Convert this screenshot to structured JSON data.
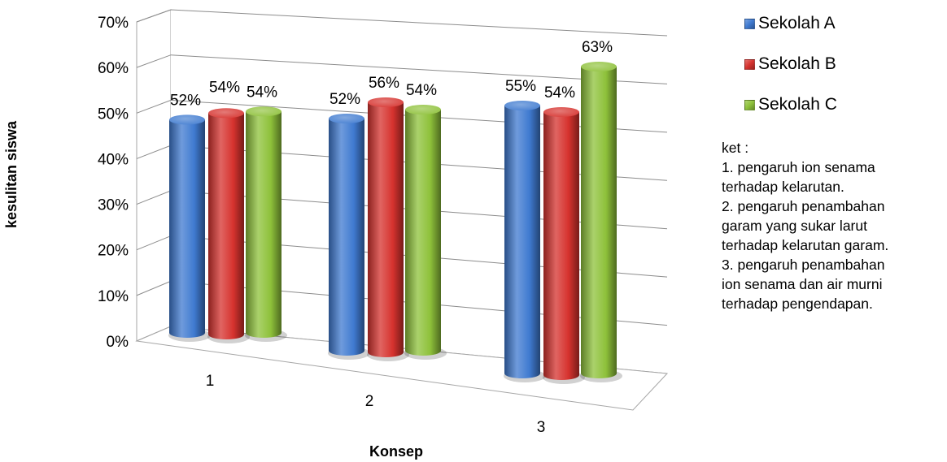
{
  "chart_data": {
    "type": "bar",
    "style": "3d-cylinder",
    "categories": [
      "1",
      "2",
      "3"
    ],
    "series": [
      {
        "name": "Sekolah A",
        "color": "#3f7ad0",
        "values": [
          52,
          52,
          55
        ],
        "labels": [
          "52%",
          "52%",
          "55%"
        ]
      },
      {
        "name": "Sekolah B",
        "color": "#d6322e",
        "values": [
          54,
          56,
          54
        ],
        "labels": [
          "54%",
          "56%",
          "54%"
        ]
      },
      {
        "name": "Sekolah C",
        "color": "#8ec13a",
        "values": [
          54,
          54,
          63
        ],
        "labels": [
          "54%",
          "54%",
          "63%"
        ]
      }
    ],
    "xlabel": "Konsep",
    "ylabel": "kesulitan siswa",
    "ylim": [
      0,
      70
    ],
    "yticks": [
      "0%",
      "10%",
      "20%",
      "30%",
      "40%",
      "50%",
      "60%",
      "70%"
    ],
    "grid": true,
    "legend_position": "top-right"
  },
  "notes": {
    "heading": "ket :",
    "lines": [
      "1. pengaruh ion senama",
      "terhadap kelarutan.",
      "2. pengaruh penambahan",
      "garam yang sukar larut",
      "terhadap kelarutan garam.",
      "3. pengaruh penambahan",
      "ion senama dan air murni",
      "terhadap pengendapan."
    ]
  }
}
